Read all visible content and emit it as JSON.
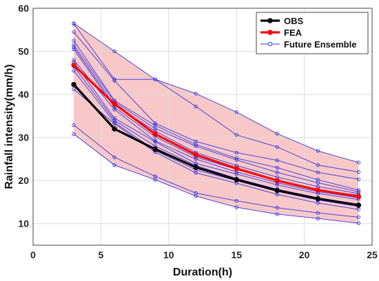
{
  "chart_data": {
    "type": "line",
    "title": "",
    "xlabel": "Duration(h)",
    "ylabel": "Rainfall intensity(mm/h)",
    "xlim": [
      0,
      25
    ],
    "ylim": [
      5,
      60
    ],
    "x_ticks": [
      0,
      5,
      10,
      15,
      20,
      25
    ],
    "y_ticks": [
      10,
      20,
      30,
      40,
      50,
      60
    ],
    "grid": true,
    "legend_position": "top-right",
    "x": [
      3,
      6,
      9,
      12,
      15,
      18,
      21,
      24
    ],
    "series": [
      {
        "name": "OBS",
        "color": "#000000",
        "values": [
          42.3,
          32.0,
          27.3,
          23.1,
          20.2,
          17.7,
          15.8,
          14.3
        ]
      },
      {
        "name": "FEA",
        "color": "#ff0000",
        "values": [
          46.8,
          37.8,
          30.8,
          26.0,
          22.8,
          20.0,
          17.8,
          16.3
        ]
      },
      {
        "name": "Future Ensemble",
        "color": "#3333dd",
        "fill_color": "#f8c8c8",
        "members": [
          [
            56.5,
            50.0,
            43.5,
            40.2,
            35.9,
            30.9,
            26.9,
            24.2
          ],
          [
            56.4,
            43.5,
            43.5,
            37.2,
            30.6,
            27.8,
            23.6,
            22.0
          ],
          [
            54.5,
            43.2,
            33.3,
            29.1,
            26.5,
            24.7,
            21.9,
            20.3
          ],
          [
            52.5,
            38.6,
            32.8,
            28.4,
            25.2,
            23.0,
            20.2,
            17.8
          ],
          [
            51.5,
            38.3,
            32.1,
            28.0,
            24.8,
            21.9,
            19.5,
            17.4
          ],
          [
            51.0,
            37.5,
            31.5,
            26.5,
            23.5,
            20.8,
            18.6,
            17.0
          ],
          [
            50.5,
            37.0,
            30.2,
            25.5,
            22.6,
            19.9,
            17.8,
            16.6
          ],
          [
            48.0,
            36.5,
            29.2,
            25.0,
            22.0,
            19.5,
            17.4,
            16.0
          ],
          [
            47.5,
            34.5,
            29.0,
            24.0,
            21.5,
            19.0,
            17.0,
            15.6
          ],
          [
            46.5,
            34.0,
            28.0,
            23.5,
            20.5,
            18.0,
            16.0,
            14.5
          ],
          [
            45.5,
            33.5,
            27.0,
            22.5,
            20.0,
            17.5,
            15.5,
            14.0
          ],
          [
            41.2,
            33.2,
            26.6,
            21.8,
            19.4,
            16.8,
            14.8,
            13.3
          ],
          [
            32.9,
            25.4,
            21.0,
            17.1,
            15.3,
            13.7,
            12.5,
            11.5
          ],
          [
            30.8,
            23.6,
            20.2,
            16.4,
            13.8,
            12.2,
            11.2,
            10.1
          ]
        ]
      }
    ]
  }
}
